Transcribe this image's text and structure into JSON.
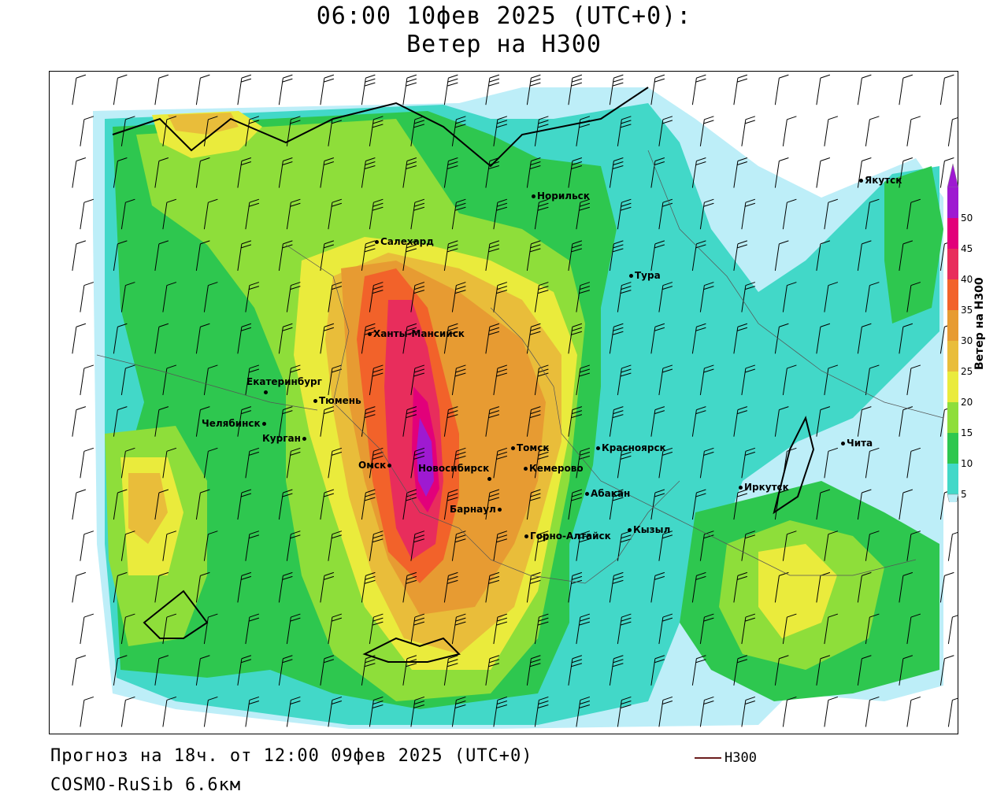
{
  "title": {
    "line1": "06:00 10фев 2025 (UTC+0):",
    "line2": "Ветер на H300"
  },
  "footer": {
    "forecast": "Прогноз на 18ч. от 12:00 09фев 2025 (UTC+0)",
    "model": "COSMO-RuSib 6.6км"
  },
  "legend": {
    "line_label": "H300",
    "line_color": "#6b1d1d"
  },
  "colorbar": {
    "label": "Ветер на H300",
    "ticks": [
      "5",
      "10",
      "15",
      "20",
      "25",
      "30",
      "35",
      "40",
      "45",
      "50"
    ],
    "colors": [
      "#bdeef8",
      "#42d8c8",
      "#2ec74f",
      "#8ede3a",
      "#eaeb3c",
      "#e9bd3a",
      "#e79b32",
      "#f2622a",
      "#e82d5c",
      "#e2007a",
      "#9e1ad1"
    ]
  },
  "cities": [
    {
      "id": "salekhard",
      "name": "Салехард"
    },
    {
      "id": "norilsk",
      "name": "Норильск"
    },
    {
      "id": "yakutsk",
      "name": "Якутск"
    },
    {
      "id": "tura",
      "name": "Тура"
    },
    {
      "id": "khanty",
      "name": "Ханты-Мансийск"
    },
    {
      "id": "ekb",
      "name": "Екатеринбург"
    },
    {
      "id": "tyumen",
      "name": "Тюмень"
    },
    {
      "id": "chelyabinsk",
      "name": "Челябинск"
    },
    {
      "id": "kurgan",
      "name": "Курган"
    },
    {
      "id": "omsk",
      "name": "Омск"
    },
    {
      "id": "novosibirsk",
      "name": "Новосибирск"
    },
    {
      "id": "tomsk",
      "name": "Томск"
    },
    {
      "id": "kemerovo",
      "name": "Кемерово"
    },
    {
      "id": "krasnoyarsk",
      "name": "Красноярск"
    },
    {
      "id": "barnaul",
      "name": "Барнаул"
    },
    {
      "id": "abakan",
      "name": "Абакан"
    },
    {
      "id": "gorno",
      "name": "Горно-Алтайск"
    },
    {
      "id": "kyzyl",
      "name": "Кызыл"
    },
    {
      "id": "irkutsk",
      "name": "Иркутск"
    },
    {
      "id": "chita",
      "name": "Чита"
    }
  ]
}
